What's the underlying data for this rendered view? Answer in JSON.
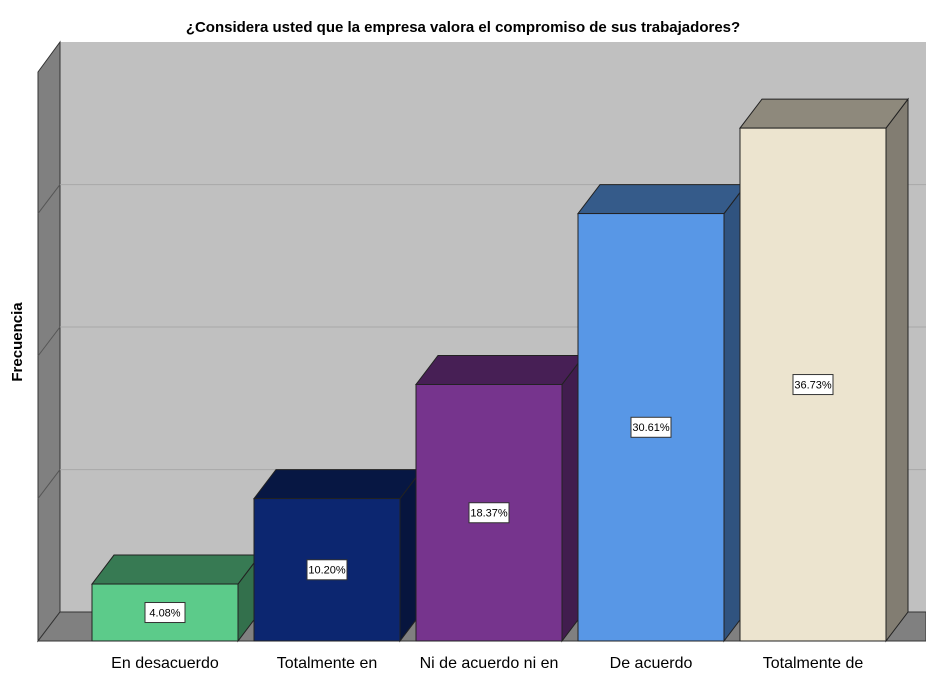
{
  "chart_data": {
    "type": "bar3d",
    "title": "¿Considera usted que la empresa valora el compromiso de sus trabajadores?",
    "ylabel": "Frecuencia",
    "categories": [
      "En desacuerdo",
      "Totalmente en",
      "Ni de acuerdo ni en",
      "De acuerdo",
      "Totalmente de"
    ],
    "values": [
      4.08,
      10.2,
      18.37,
      30.61,
      36.73
    ],
    "value_labels": [
      "4.08%",
      "10.20%",
      "18.37%",
      "30.61%",
      "36.73%"
    ],
    "colors": [
      "#5ccb8a",
      "#0c2670",
      "#76348d",
      "#5897e6",
      "#ece4cf"
    ],
    "ylim": [
      0,
      40.82
    ],
    "yticks": [
      10.2,
      20.41,
      30.61
    ],
    "grid": true
  }
}
